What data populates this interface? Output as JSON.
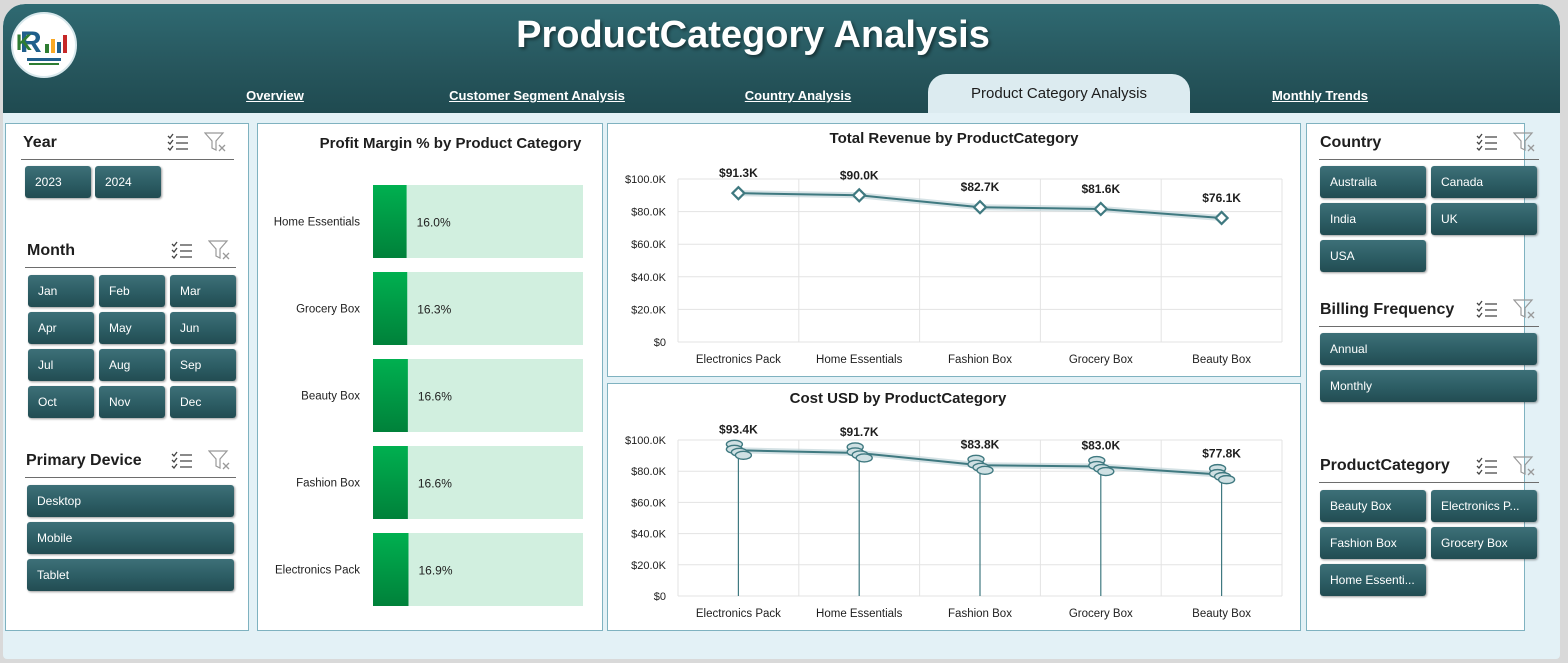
{
  "header": {
    "title": "ProductCategory Analysis",
    "tabs": [
      {
        "label": "Overview",
        "active": false
      },
      {
        "label": "Customer Segment Analysis",
        "active": false
      },
      {
        "label": "Country Analysis",
        "active": false
      },
      {
        "label": "Product Category Analysis",
        "active": true
      },
      {
        "label": "Monthly Trends",
        "active": false
      }
    ]
  },
  "left_slicers": {
    "year": {
      "title": "Year",
      "items": [
        "2023",
        "2024"
      ]
    },
    "month": {
      "title": "Month",
      "items": [
        "Jan",
        "Feb",
        "Mar",
        "Apr",
        "May",
        "Jun",
        "Jul",
        "Aug",
        "Sep",
        "Oct",
        "Nov",
        "Dec"
      ]
    },
    "device": {
      "title": "Primary Device",
      "items": [
        "Desktop",
        "Mobile",
        "Tablet"
      ]
    }
  },
  "right_slicers": {
    "country": {
      "title": "Country",
      "items": [
        "Australia",
        "Canada",
        "India",
        "UK",
        "USA"
      ]
    },
    "billing": {
      "title": "Billing Frequency",
      "items": [
        "Annual",
        "Monthly"
      ]
    },
    "category": {
      "title": "ProductCategory",
      "items": [
        "Beauty Box",
        "Electronics P...",
        "Fashion Box",
        "Grocery Box",
        "Home Essenti..."
      ]
    }
  },
  "colors": {
    "header": "#27575e",
    "button": "#2b5b62",
    "bar_fill": "#00a84a",
    "bar_track": "#d1efdf",
    "line": "#3f7980"
  },
  "chart_data": [
    {
      "type": "bar",
      "title": "Profit Margin % by Product Category",
      "categories": [
        "Home Essentials",
        "Grocery Box",
        "Beauty Box",
        "Fashion Box",
        "Electronics Pack"
      ],
      "values": [
        16.0,
        16.3,
        16.6,
        16.6,
        16.9
      ],
      "labels": [
        "16.0%",
        "16.3%",
        "16.6%",
        "16.6%",
        "16.9%"
      ],
      "xlim": [
        0,
        100
      ],
      "orientation": "horizontal"
    },
    {
      "type": "line",
      "title": "Total Revenue by ProductCategory",
      "categories": [
        "Electronics Pack",
        "Home Essentials",
        "Fashion Box",
        "Grocery Box",
        "Beauty Box"
      ],
      "values": [
        91.3,
        90.0,
        82.7,
        81.6,
        76.1
      ],
      "labels": [
        "$91.3K",
        "$90.0K",
        "$82.7K",
        "$81.6K",
        "$76.1K"
      ],
      "yticks": [
        "$0",
        "$20.0K",
        "$40.0K",
        "$60.0K",
        "$80.0K",
        "$100.0K"
      ],
      "ylim": [
        0,
        100
      ],
      "grid": true
    },
    {
      "type": "line",
      "title": "Cost USD by ProductCategory",
      "categories": [
        "Electronics Pack",
        "Home Essentials",
        "Fashion Box",
        "Grocery Box",
        "Beauty Box"
      ],
      "values": [
        93.4,
        91.7,
        83.8,
        83.0,
        77.8
      ],
      "labels": [
        "$93.4K",
        "$91.7K",
        "$83.8K",
        "$83.0K",
        "$77.8K"
      ],
      "yticks": [
        "$0",
        "$20.0K",
        "$40.0K",
        "$60.0K",
        "$80.0K",
        "$100.0K"
      ],
      "ylim": [
        0,
        100
      ],
      "grid": true
    }
  ]
}
